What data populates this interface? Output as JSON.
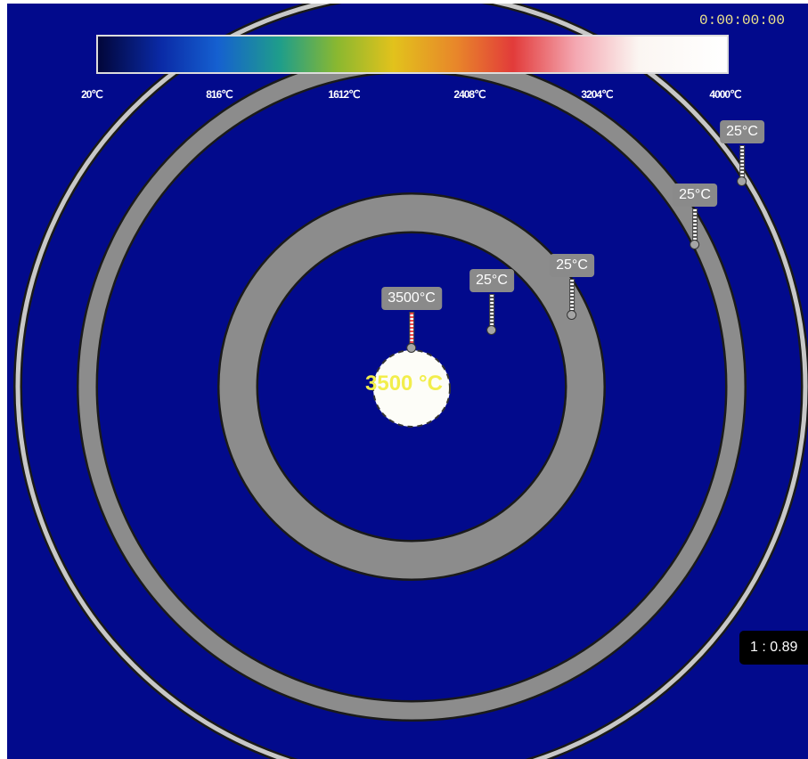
{
  "timer": "0:00:00:00",
  "colorbar": {
    "ticks": [
      "20℃",
      "816℃",
      "1612℃",
      "2408℃",
      "3204℃",
      "4000℃"
    ],
    "min": 20,
    "max": 4000
  },
  "source": {
    "label": "3500 °C"
  },
  "probes": [
    {
      "label": "3500°C",
      "hot": true
    },
    {
      "label": "25°C",
      "hot": false
    },
    {
      "label": "25°C",
      "hot": false
    },
    {
      "label": "25°C",
      "hot": false
    },
    {
      "label": "25°C",
      "hot": false
    }
  ],
  "scale": "1 : 0.89",
  "colors": {
    "background": "#020a8c",
    "ring": "#8c8c8c",
    "source": "#fdfdf8",
    "source_label": "#f2ee4c"
  }
}
